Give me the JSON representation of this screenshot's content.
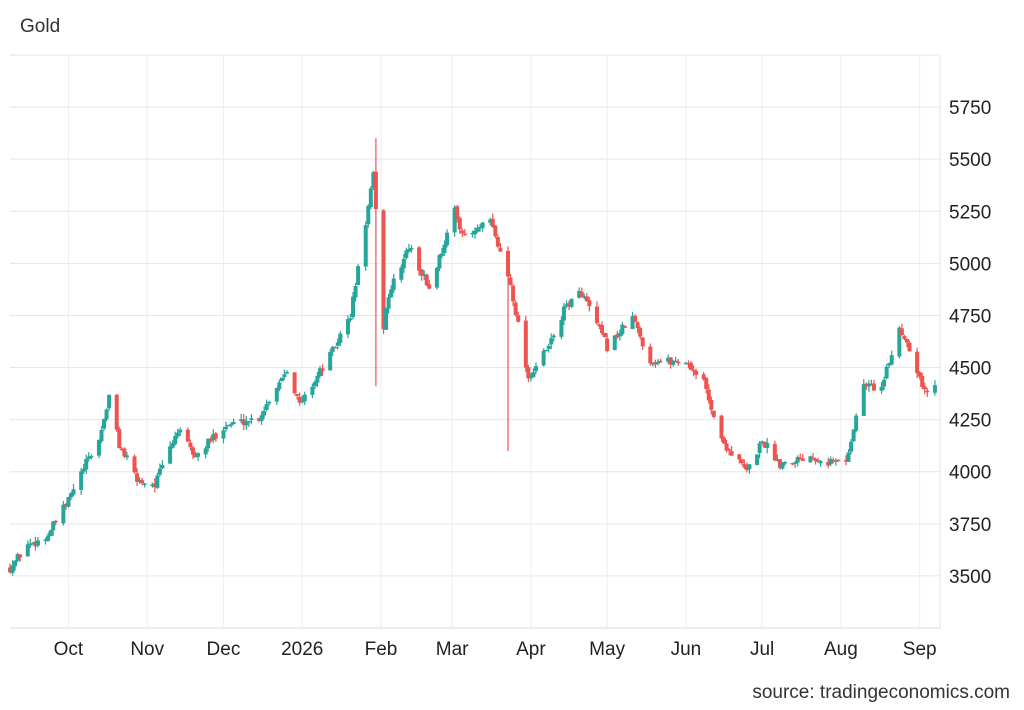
{
  "chart_data": {
    "type": "candlestick",
    "title": "Gold",
    "source": "source: tradingeconomics.com",
    "xlabel": "",
    "ylabel": "",
    "ylim": [
      3250,
      6000
    ],
    "y_ticks": [
      3500,
      3750,
      4000,
      4250,
      4500,
      4750,
      5000,
      5250,
      5500,
      5750
    ],
    "x_ticks": [
      "Oct",
      "Nov",
      "Dec",
      "2026",
      "Feb",
      "Mar",
      "Apr",
      "May",
      "Jun",
      "Jul",
      "Aug",
      "Sep"
    ],
    "grid": true,
    "up_color": "#26a69a",
    "down_color": "#ef5350",
    "price_path": [
      [
        "2025-09-08",
        3540
      ],
      [
        "2025-09-15",
        3650
      ],
      [
        "2025-09-22",
        3680
      ],
      [
        "2025-09-30",
        3840
      ],
      [
        "2025-10-08",
        4040
      ],
      [
        "2025-10-13",
        4150
      ],
      [
        "2025-10-17",
        4360
      ],
      [
        "2025-10-21",
        4130
      ],
      [
        "2025-10-28",
        3960
      ],
      [
        "2025-11-04",
        3940
      ],
      [
        "2025-11-13",
        4200
      ],
      [
        "2025-11-20",
        4070
      ],
      [
        "2025-12-01",
        4220
      ],
      [
        "2025-12-15",
        4260
      ],
      [
        "2025-12-26",
        4500
      ],
      [
        "2025-12-31",
        4320
      ],
      [
        "2026-01-13",
        4580
      ],
      [
        "2026-01-20",
        4750
      ],
      [
        "2026-01-29",
        5420
      ],
      [
        "2026-02-02",
        4700
      ],
      [
        "2026-02-04",
        4850
      ],
      [
        "2026-02-12",
        5080
      ],
      [
        "2026-02-20",
        4880
      ],
      [
        "2026-03-02",
        5250
      ],
      [
        "2026-03-06",
        5120
      ],
      [
        "2026-03-16",
        5200
      ],
      [
        "2026-03-24",
        4900
      ],
      [
        "2026-03-31",
        4450
      ],
      [
        "2026-04-08",
        4600
      ],
      [
        "2026-04-15",
        4800
      ],
      [
        "2026-04-21",
        4860
      ],
      [
        "2026-05-01",
        4600
      ],
      [
        "2026-05-11",
        4740
      ],
      [
        "2026-05-18",
        4530
      ],
      [
        "2026-06-01",
        4530
      ],
      [
        "2026-06-08",
        4430
      ],
      [
        "2026-06-15",
        4150
      ],
      [
        "2026-06-25",
        4000
      ],
      [
        "2026-07-01",
        4150
      ],
      [
        "2026-07-08",
        4040
      ],
      [
        "2026-07-20",
        4080
      ],
      [
        "2026-07-27",
        4050
      ],
      [
        "2026-08-03",
        4050
      ],
      [
        "2026-08-10",
        4420
      ],
      [
        "2026-08-17",
        4400
      ],
      [
        "2026-08-24",
        4690
      ],
      [
        "2026-08-28",
        4600
      ],
      [
        "2026-09-03",
        4380
      ],
      [
        "2026-09-07",
        4410
      ]
    ],
    "spikes": [
      {
        "date": "2026-01-30",
        "high": 5600,
        "low": 4410
      },
      {
        "date": "2026-03-23",
        "high": 4620,
        "low": 4100
      }
    ]
  }
}
